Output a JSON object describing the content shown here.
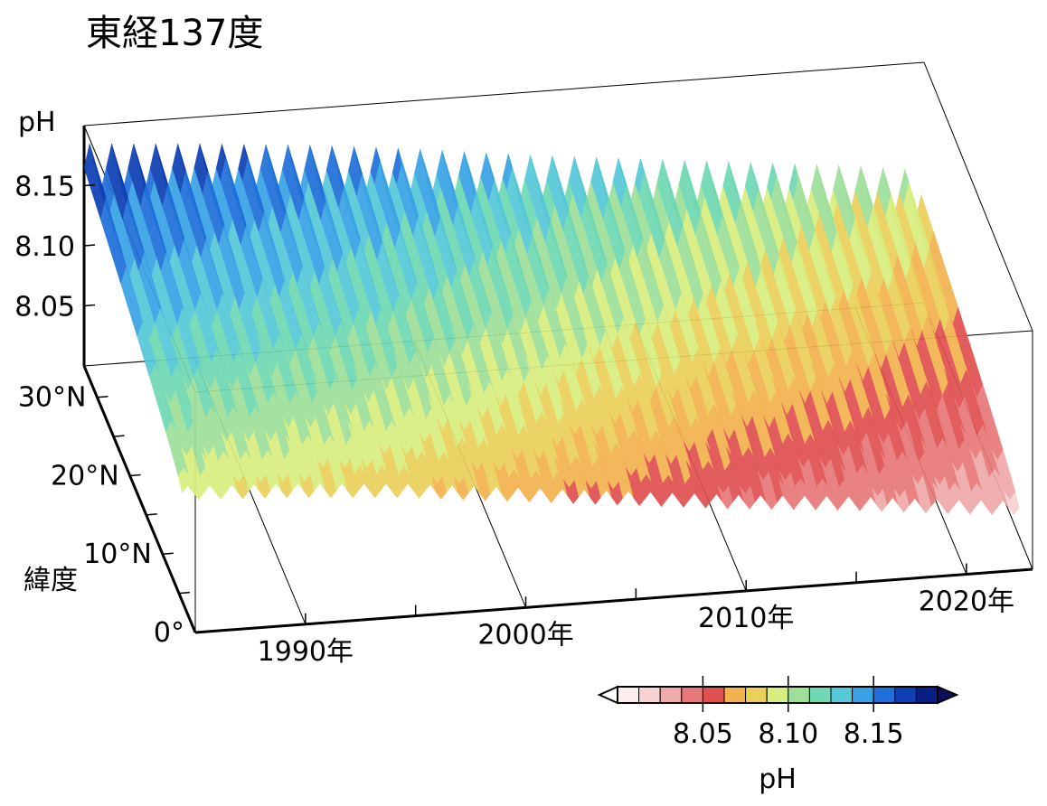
{
  "chart_data": {
    "type": "surface",
    "title": "東経137度",
    "zlabel": "pH",
    "ylabel": "緯度",
    "x_ticks": [
      "1990年",
      "2000年",
      "2010年",
      "2020年"
    ],
    "y_ticks": [
      "30°N",
      "20°N",
      "10°N",
      "0°"
    ],
    "z_ticks": [
      "8.15",
      "8.10",
      "8.05"
    ],
    "x_range": [
      1985,
      2023
    ],
    "y_range": [
      0,
      34
    ],
    "z_range": [
      8.0,
      8.2
    ],
    "colorbar": {
      "label": "pH",
      "ticks": [
        "8.05",
        "8.10",
        "8.15"
      ],
      "levels": [
        8.0,
        8.0125,
        8.025,
        8.0375,
        8.05,
        8.0625,
        8.075,
        8.0875,
        8.1,
        8.1125,
        8.125,
        8.1375,
        8.15,
        8.1625,
        8.175
      ],
      "colors": [
        "#fdeeee",
        "#f7d2d2",
        "#efaaaa",
        "#e87878",
        "#e05050",
        "#f2b24f",
        "#ebd05b",
        "#d9ee80",
        "#9ee09a",
        "#6fd8b4",
        "#56c8d8",
        "#39a2e6",
        "#1f6fd8",
        "#0e3fb4",
        "#0a1f86"
      ],
      "extend": "both"
    },
    "series": [
      {
        "years": [
          1985,
          1990,
          1995,
          2000,
          2005,
          2010,
          2015,
          2020,
          2023
        ],
        "north_ph": [
          8.165,
          8.158,
          8.15,
          8.14,
          8.128,
          8.118,
          8.108,
          8.098,
          8.09
        ],
        "south_ph": [
          8.09,
          8.085,
          8.078,
          8.068,
          8.058,
          8.048,
          8.04,
          8.03,
          8.025
        ],
        "seasonal_amplitude": 0.02
      }
    ]
  }
}
